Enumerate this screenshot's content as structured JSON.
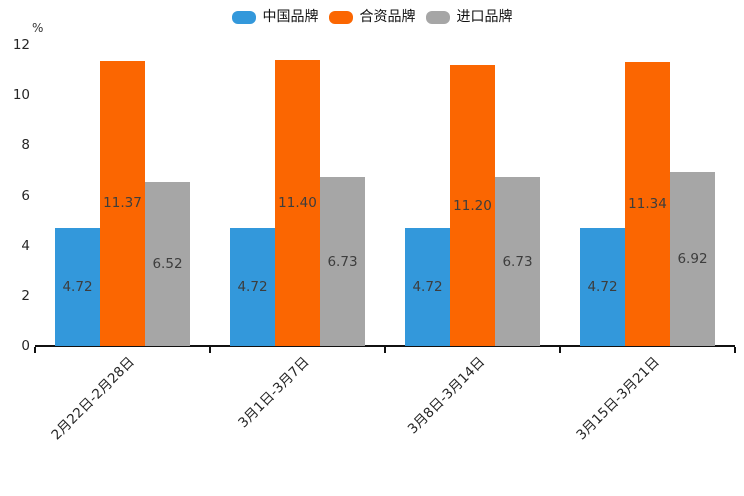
{
  "chart_data": {
    "type": "bar",
    "title": "",
    "unit_label": "%",
    "categories": [
      "2月22日-2月28日",
      "3月1日-3月7日",
      "3月8日-3月14日",
      "3月15日-3月21日"
    ],
    "series": [
      {
        "name": "中国品牌",
        "color": "#3398DB",
        "values": [
          4.72,
          4.72,
          4.72,
          4.72
        ]
      },
      {
        "name": "合资品牌",
        "color": "#FB6601",
        "values": [
          11.37,
          11.4,
          11.2,
          11.34
        ]
      },
      {
        "name": "进口品牌",
        "color": "#A6A6A6",
        "values": [
          6.52,
          6.73,
          6.73,
          6.92
        ]
      }
    ],
    "y_axis": {
      "label": "%",
      "min": 0,
      "max": 12,
      "ticks": [
        0,
        2,
        4,
        6,
        8,
        10,
        12
      ]
    },
    "legend_position": "top-center",
    "grid": false,
    "value_labels": "inside-center",
    "value_label_decimals": 2
  }
}
